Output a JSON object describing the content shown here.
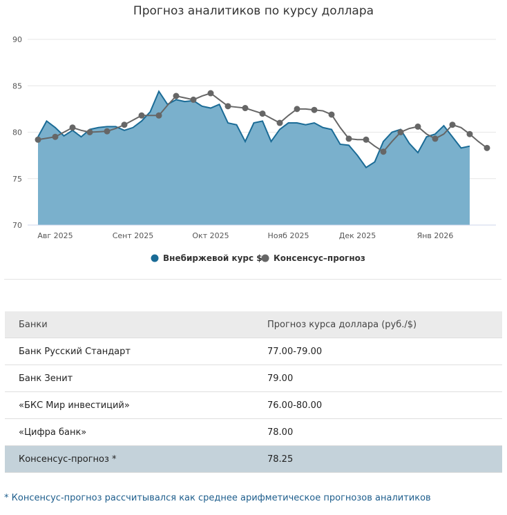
{
  "chart_data": {
    "type": "area-line",
    "title": "Прогноз аналитиков по курсу доллара",
    "categories": [
      "",
      null,
      "Авг 2025",
      null,
      null,
      null,
      null,
      null,
      null,
      null,
      null,
      "Сент 2025",
      null,
      null,
      null,
      null,
      null,
      null,
      null,
      null,
      "Окт 2025",
      null,
      null,
      null,
      null,
      null,
      null,
      null,
      null,
      "Нояб 2025",
      null,
      null,
      null,
      null,
      null,
      null,
      null,
      "Дек 2025",
      null,
      null,
      null,
      null,
      null,
      null,
      null,
      null,
      "Янв 2026",
      null,
      null,
      null,
      null,
      null,
      null
    ],
    "series": [
      {
        "name": "Внебиржевой курс $",
        "color": "#1a6b96",
        "fill": "#7ab0cc",
        "kind": "area",
        "values": [
          79.5,
          81.2,
          80.5,
          79.6,
          80.2,
          79.5,
          80.3,
          80.5,
          80.6,
          80.6,
          80.2,
          80.5,
          81.2,
          82.2,
          84.4,
          83.0,
          83.5,
          83.3,
          83.4,
          82.8,
          82.6,
          83.0,
          81.0,
          80.8,
          79.0,
          81.0,
          81.2,
          79.0,
          80.3,
          81.0,
          81.0,
          80.8,
          81.0,
          80.5,
          80.3,
          78.7,
          78.6,
          77.5,
          76.2,
          76.8,
          79.0,
          80.0,
          80.3,
          78.8,
          77.8,
          79.5,
          79.8,
          80.7,
          79.5,
          78.3,
          78.5,
          null,
          null
        ]
      },
      {
        "name": "Консенсус–прогноз",
        "color": "#666666",
        "kind": "line",
        "values": [
          79.2,
          79.35,
          79.5,
          80.0,
          80.5,
          80.2,
          80.0,
          80.05,
          80.1,
          80.4,
          80.8,
          81.3,
          81.8,
          81.8,
          81.8,
          82.9,
          83.9,
          83.7,
          83.5,
          83.9,
          84.2,
          83.5,
          82.8,
          82.7,
          82.6,
          82.3,
          82.0,
          81.5,
          81.0,
          81.8,
          82.5,
          82.5,
          82.4,
          82.3,
          81.9,
          80.5,
          79.3,
          79.2,
          79.2,
          78.5,
          77.9,
          79.0,
          80.0,
          80.4,
          80.6,
          79.8,
          79.3,
          79.8,
          80.8,
          80.5,
          79.8,
          79.0,
          78.3
        ]
      }
    ],
    "ylim": [
      70,
      90
    ],
    "yticks": [
      70,
      75,
      80,
      85,
      90
    ],
    "grid": true,
    "legend": "bottom"
  },
  "table": {
    "header": [
      "Банки",
      "Прогноз курса доллара (руб./$)"
    ],
    "rows": [
      [
        "Банк Русский Стандарт",
        "77.00-79.00"
      ],
      [
        "Банк Зенит",
        "79.00"
      ],
      [
        "«БКС Мир инвестиций»",
        "76.00-80.00"
      ],
      [
        "«Цифра банк»",
        "78.00"
      ],
      [
        "Консенсус-прогноз *",
        "78.25"
      ]
    ]
  },
  "footnote": "* Консенсус-прогноз рассчитывался как среднее арифметическое прогнозов аналитиков"
}
